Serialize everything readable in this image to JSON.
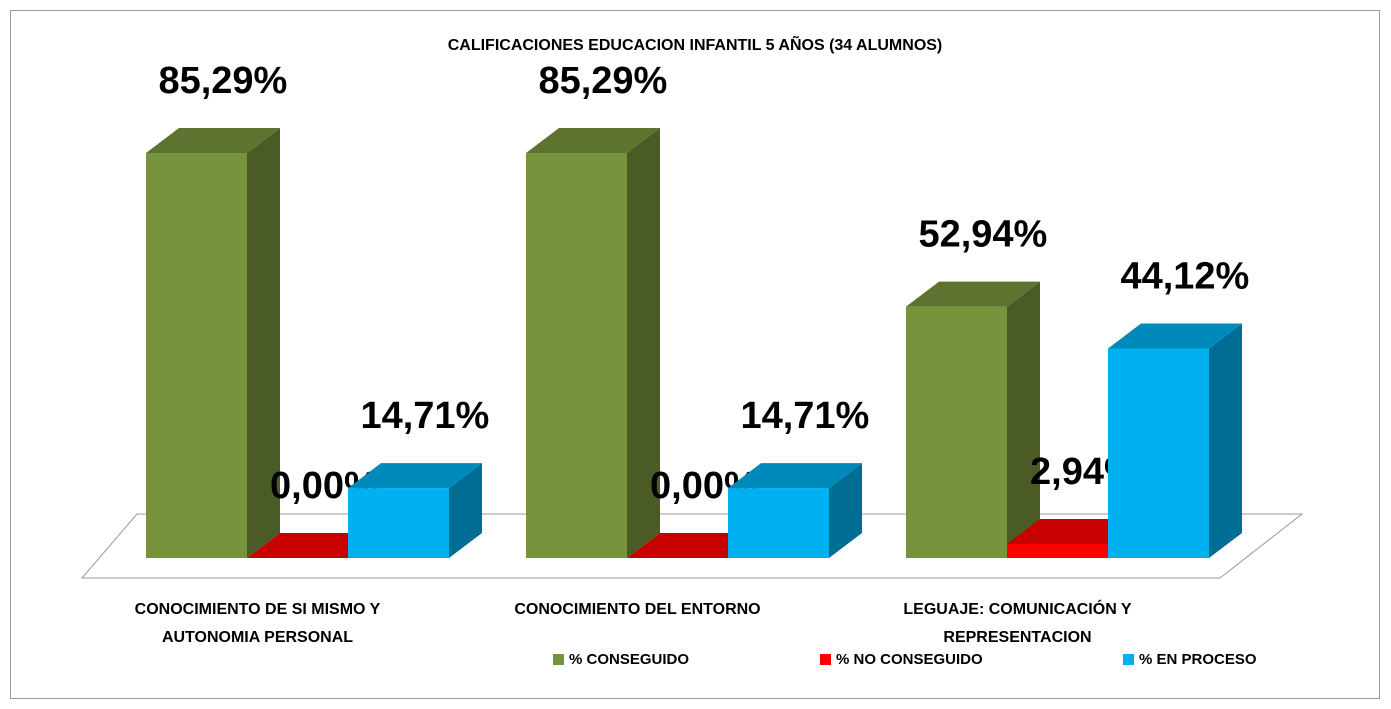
{
  "chart_data": {
    "type": "bar3d",
    "title": "CALIFICACIONES EDUCACION INFANTIL 5 AÑOS (34 ALUMNOS)",
    "categories": [
      "CONOCIMIENTO DE SI MISMO Y AUTONOMIA PERSONAL",
      "CONOCIMIENTO DEL ENTORNO",
      "LEGUAJE: COMUNICACIÓN Y REPRESENTACION"
    ],
    "series": [
      {
        "name": "% CONSEGUIDO",
        "color": "#77933c",
        "values": [
          85.29,
          85.29,
          52.94
        ],
        "value_labels": [
          "85,29%",
          "85,29%",
          "52,94%"
        ]
      },
      {
        "name": "% NO CONSEGUIDO",
        "color": "#ff0000",
        "values": [
          0,
          0,
          2.94
        ],
        "value_labels": [
          "0,00%",
          "0,00%",
          "2,94%"
        ]
      },
      {
        "name": "% EN PROCESO",
        "color": "#00b0f0",
        "values": [
          14.71,
          14.71,
          44.12
        ],
        "value_labels": [
          "14,71%",
          "14,71%",
          "44,12%"
        ]
      }
    ],
    "legend": "bottom"
  }
}
